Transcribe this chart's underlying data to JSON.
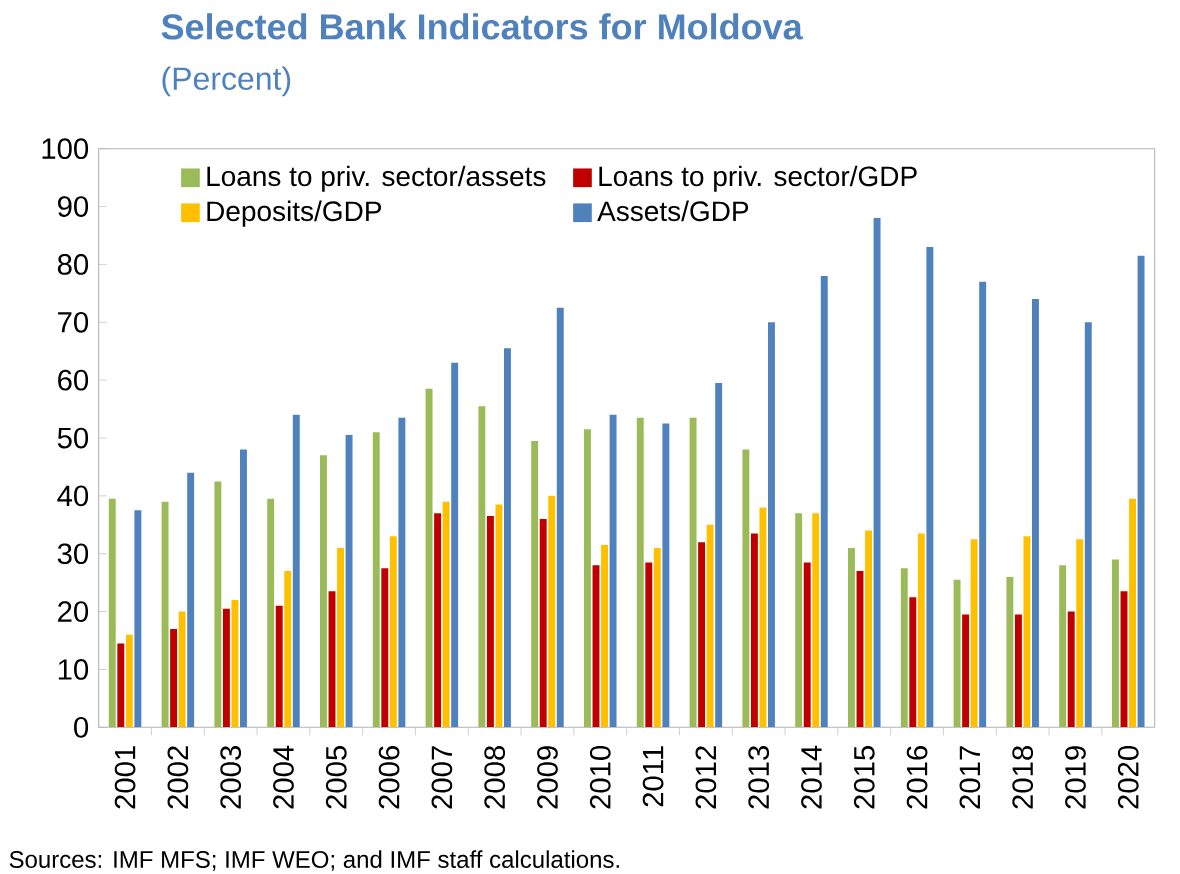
{
  "chart_data": {
    "type": "bar",
    "title": "Selected Bank Indicators for Moldova",
    "subtitle": "(Percent)",
    "categories": [
      "2001",
      "2002",
      "2003",
      "2004",
      "2005",
      "2006",
      "2007",
      "2008",
      "2009",
      "2010",
      "2011",
      "2012",
      "2013",
      "2014",
      "2015",
      "2016",
      "2017",
      "2018",
      "2019",
      "2020"
    ],
    "series": [
      {
        "name": "Loans to priv. sector/assets",
        "color": "#9bbb59",
        "values": [
          39.5,
          39,
          42.5,
          39.5,
          47,
          51,
          58.5,
          55.5,
          49.5,
          51.5,
          53.5,
          53.5,
          48,
          37,
          31,
          27.5,
          25.5,
          26,
          28,
          29
        ]
      },
      {
        "name": "Loans to priv. sector/GDP",
        "color": "#c00000",
        "values": [
          14.5,
          17,
          20.5,
          21,
          23.5,
          27.5,
          37,
          36.5,
          36,
          28,
          28.5,
          32,
          33.5,
          28.5,
          27,
          22.5,
          19.5,
          19.5,
          20,
          23.5
        ]
      },
      {
        "name": "Deposits/GDP",
        "color": "#ffc000",
        "values": [
          16,
          20,
          22,
          27,
          31,
          33,
          39,
          38.5,
          40,
          31.5,
          31,
          35,
          38,
          37,
          34,
          33.5,
          32.5,
          33,
          32.5,
          39.5
        ]
      },
      {
        "name": "Assets/GDP",
        "color": "#4f81bd",
        "values": [
          37.5,
          44,
          48,
          54,
          50.5,
          53.5,
          63,
          65.5,
          72.5,
          54,
          52.5,
          59.5,
          70,
          78,
          88,
          83,
          77,
          74,
          70,
          81.5
        ]
      }
    ],
    "ylim": [
      0,
      100
    ],
    "yticks": [
      0,
      10,
      20,
      30,
      40,
      50,
      60,
      70,
      80,
      90,
      100
    ],
    "grid": false,
    "legend": "top",
    "annotations": [
      "Sources: IMF MFS; IMF WEO; and IMF staff calculations."
    ]
  }
}
